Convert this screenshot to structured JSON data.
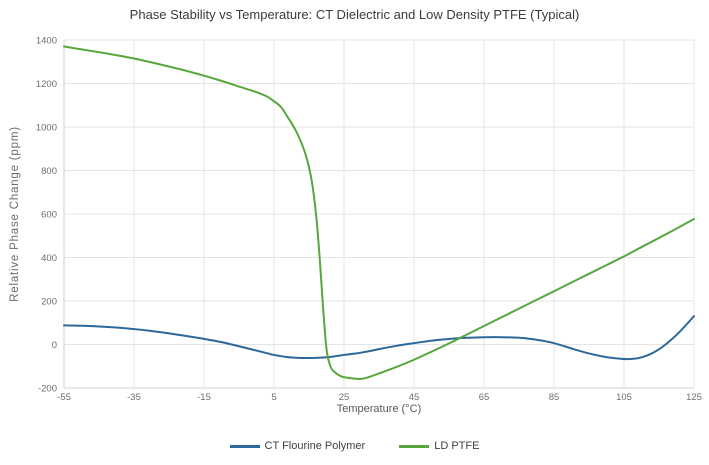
{
  "chart_data": {
    "type": "line",
    "title": "Phase Stability vs Temperature: CT Dielectric and Low Density PTFE (Typical)",
    "xlabel": "Temperature (°C)",
    "ylabel": "Relative Phase Change (ppm)",
    "xlim": [
      -55,
      125
    ],
    "ylim": [
      -200,
      1400
    ],
    "x_ticks": [
      -55,
      -35,
      -15,
      5,
      25,
      45,
      65,
      85,
      105,
      125
    ],
    "y_ticks": [
      -200,
      0,
      200,
      400,
      600,
      800,
      1000,
      1200,
      1400
    ],
    "grid": true,
    "legend_position": "bottom",
    "colors": {
      "grid": "#e4e4e4",
      "axis": "#d2d2d2",
      "tick_label": "#6e6e6e",
      "title": "#3b3b3b"
    },
    "series": [
      {
        "name": "CT Flourine Polymer",
        "color": "#2d689c",
        "x": [
          -55,
          -50,
          -45,
          -40,
          -35,
          -30,
          -25,
          -20,
          -15,
          -10,
          -5,
          0,
          3,
          5,
          8,
          10,
          13,
          16,
          19,
          22,
          25,
          28,
          30,
          33,
          36,
          40,
          44,
          48,
          52,
          56,
          60,
          64,
          68,
          72,
          76,
          80,
          84,
          88,
          92,
          96,
          100,
          103,
          106,
          109,
          112,
          115,
          118,
          121,
          125
        ],
        "y": [
          88,
          86,
          83,
          78,
          71,
          62,
          51,
          39,
          26,
          11,
          -8,
          -28,
          -40,
          -48,
          -56,
          -60,
          -62,
          -62,
          -60,
          -55,
          -48,
          -42,
          -37,
          -28,
          -18,
          -6,
          4,
          13,
          21,
          27,
          31,
          33,
          34,
          33,
          30,
          22,
          10,
          -8,
          -28,
          -45,
          -58,
          -64,
          -67,
          -63,
          -48,
          -22,
          15,
          60,
          130
        ]
      },
      {
        "name": "LD PTFE",
        "color": "#57a73c",
        "x": [
          -55,
          -50,
          -45,
          -40,
          -35,
          -30,
          -25,
          -20,
          -15,
          -10,
          -5,
          0,
          3,
          5,
          7,
          9,
          10,
          11,
          12,
          13,
          14,
          15,
          16,
          17,
          18,
          19,
          20,
          21,
          22,
          24,
          26,
          28,
          30,
          32,
          35,
          40,
          45,
          50,
          55,
          60,
          65,
          70,
          75,
          80,
          85,
          90,
          95,
          100,
          105,
          110,
          115,
          120,
          125
        ],
        "y": [
          1370,
          1357,
          1344,
          1330,
          1315,
          1297,
          1278,
          1258,
          1236,
          1212,
          1186,
          1160,
          1140,
          1118,
          1092,
          1043,
          1018,
          990,
          958,
          920,
          875,
          815,
          730,
          600,
          410,
          175,
          -20,
          -95,
          -122,
          -145,
          -153,
          -157,
          -158,
          -150,
          -133,
          -103,
          -70,
          -33,
          5,
          45,
          85,
          125,
          165,
          205,
          245,
          285,
          325,
          365,
          405,
          448,
          490,
          533,
          577
        ]
      }
    ]
  }
}
